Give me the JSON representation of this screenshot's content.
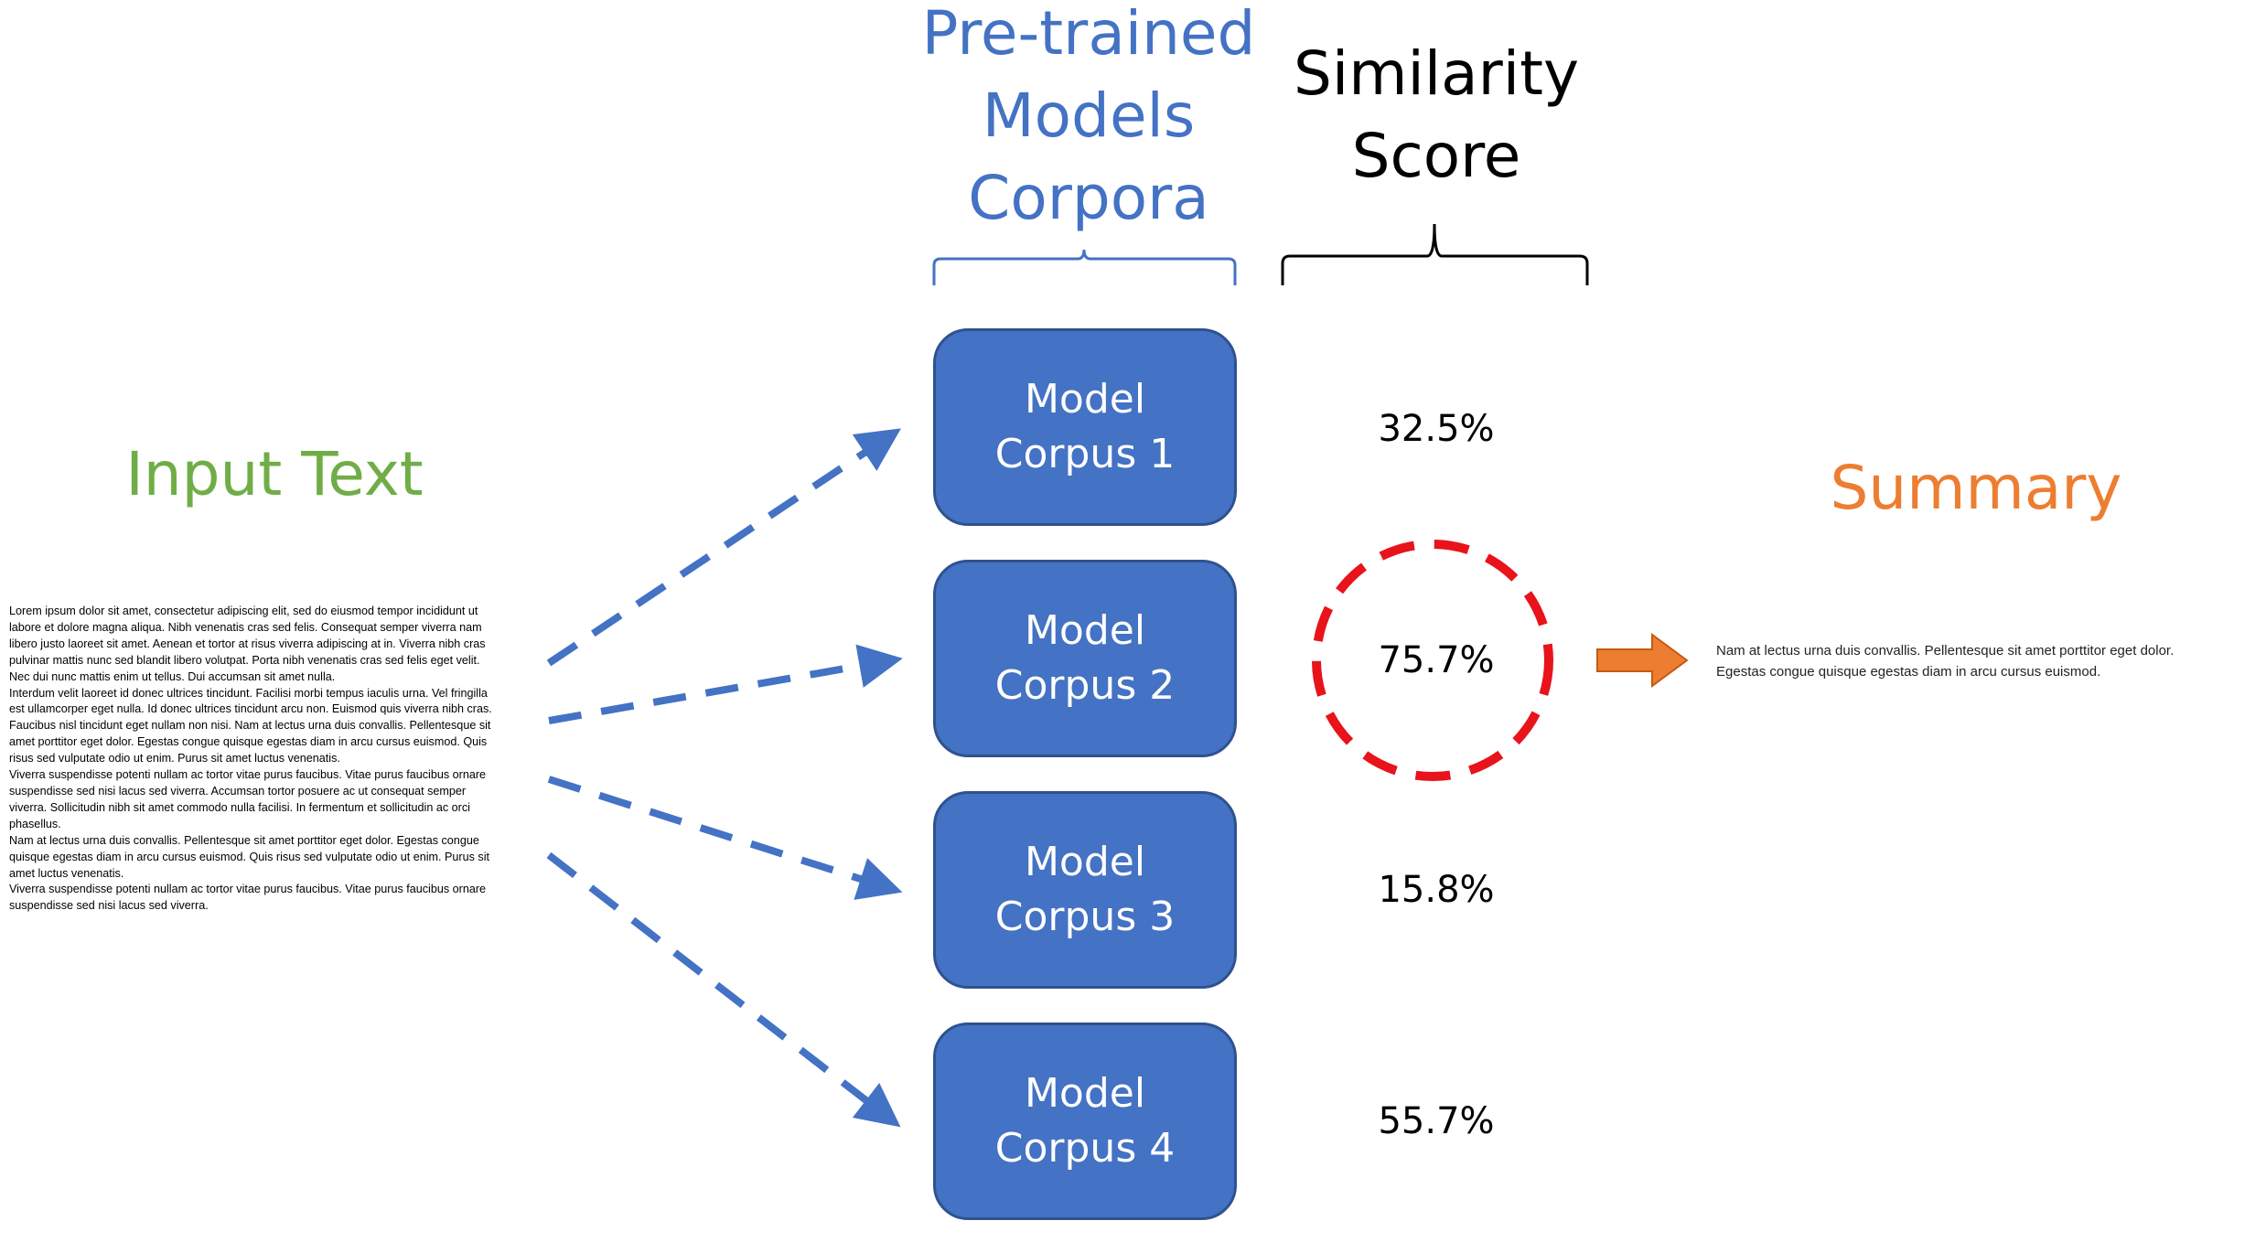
{
  "headers": {
    "models_line1": "Pre-trained",
    "models_line2": "Models",
    "models_line3": "Corpora",
    "score_line1": "Similarity",
    "score_line2": "Score"
  },
  "input": {
    "label": "Input Text",
    "text": "Lorem ipsum dolor sit amet, consectetur adipiscing elit, sed do eiusmod tempor incididunt ut\nlabore et dolore magna aliqua. Nibh venenatis cras sed felis. Consequat semper viverra nam\nlibero justo laoreet sit amet. Aenean et tortor at risus viverra adipiscing at in. Viverra nibh cras\npulvinar mattis nunc sed blandit libero volutpat. Porta nibh venenatis cras sed felis eget velit.\nNec dui nunc mattis enim ut tellus. Dui accumsan sit amet nulla.\nInterdum velit laoreet id donec ultrices tincidunt. Facilisi morbi tempus iaculis urna. Vel fringilla\nest ullamcorper eget nulla. Id donec ultrices tincidunt arcu non. Euismod quis viverra nibh cras.\nFaucibus nisl tincidunt eget nullam non nisi. Nam at lectus urna duis convallis. Pellentesque sit\namet porttitor eget dolor. Egestas congue quisque egestas diam in arcu cursus euismod. Quis\nrisus sed vulputate odio ut enim. Purus sit amet luctus venenatis.\nViverra suspendisse potenti nullam ac tortor vitae purus faucibus. Vitae purus faucibus ornare\nsuspendisse sed nisi lacus sed viverra. Accumsan tortor posuere ac ut consequat semper\nviverra. Sollicitudin nibh sit amet commodo nulla facilisi. In fermentum et sollicitudin ac orci\nphasellus.\nNam at lectus urna duis convallis. Pellentesque sit amet porttitor eget dolor. Egestas congue\nquisque egestas diam in arcu cursus euismod. Quis risus sed vulputate odio ut enim. Purus sit\namet luctus venenatis.\nViverra suspendisse potenti nullam ac tortor vitae purus faucibus. Vitae purus faucibus ornare\nsuspendisse sed nisi lacus sed viverra."
  },
  "models": [
    {
      "line1": "Model",
      "line2": "Corpus 1",
      "score": "32.5%",
      "selected": false
    },
    {
      "line1": "Model",
      "line2": "Corpus 2",
      "score": "75.7%",
      "selected": true
    },
    {
      "line1": "Model",
      "line2": "Corpus 3",
      "score": "15.8%",
      "selected": false
    },
    {
      "line1": "Model",
      "line2": "Corpus 4",
      "score": "55.7%",
      "selected": false
    }
  ],
  "summary": {
    "label": "Summary",
    "text": "Nam at lectus urna duis convallis. Pellentesque sit amet porttitor eget dolor.\nEgestas congue quisque egestas diam in arcu cursus euismod."
  },
  "colors": {
    "model_fill": "#4472C4",
    "model_border": "#2F528F",
    "arrow": "#4472C4",
    "highlight_circle": "#E8131B",
    "summary_arrow": "#ED7D31",
    "input_label": "#70AD47",
    "summary_label": "#ED7D31",
    "models_header": "#4472C4"
  }
}
